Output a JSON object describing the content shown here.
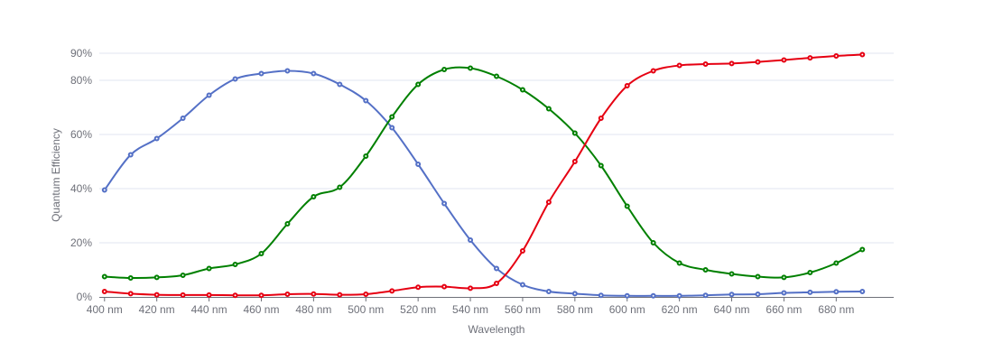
{
  "chart_data": {
    "type": "line",
    "title": "",
    "xlabel": "Wavelength",
    "ylabel": "Quantum Efficiency",
    "x_ticks": [
      "400 nm",
      "420 nm",
      "440 nm",
      "460 nm",
      "480 nm",
      "500 nm",
      "520 nm",
      "540 nm",
      "560 nm",
      "580 nm",
      "600 nm",
      "620 nm",
      "640 nm",
      "660 nm",
      "680 nm"
    ],
    "y_ticks": [
      {
        "value": 0,
        "label": "0%"
      },
      {
        "value": 20,
        "label": "20%"
      },
      {
        "value": 40,
        "label": "40%"
      },
      {
        "value": 60,
        "label": "60%"
      },
      {
        "value": 80,
        "label": "80%"
      },
      {
        "value": 90,
        "label": "90%"
      }
    ],
    "xlim": [
      398,
      702
    ],
    "ylim": [
      0,
      90
    ],
    "grid": true,
    "smooth": true,
    "x": [
      400,
      410,
      420,
      430,
      440,
      450,
      460,
      470,
      480,
      490,
      500,
      510,
      520,
      530,
      540,
      550,
      560,
      570,
      580,
      590,
      600,
      610,
      620,
      630,
      640,
      650,
      660,
      670,
      680,
      690
    ],
    "series": [
      {
        "color": "#5470c6",
        "values": [
          39.5,
          52.5,
          58.5,
          66,
          74.5,
          80.5,
          82.5,
          83.5,
          82.5,
          78.5,
          72.5,
          62.5,
          49,
          34.5,
          21,
          10.5,
          4.5,
          2,
          1.2,
          0.6,
          0.4,
          0.4,
          0.4,
          0.6,
          0.9,
          1,
          1.5,
          1.7,
          1.9,
          2
        ]
      },
      {
        "color": "#008000",
        "values": [
          7.5,
          7,
          7.2,
          8,
          10.5,
          12,
          16,
          27,
          37,
          40.5,
          52,
          66.5,
          78.5,
          84,
          84.5,
          81.5,
          76.5,
          69.5,
          60.5,
          48.5,
          33.5,
          20,
          12.5,
          10,
          8.5,
          7.5,
          7.2,
          9,
          12.5,
          17.5
        ]
      },
      {
        "color": "#e60012",
        "values": [
          2,
          1.2,
          0.8,
          0.7,
          0.7,
          0.6,
          0.6,
          1,
          1.1,
          0.8,
          1,
          2.2,
          3.6,
          3.8,
          3.2,
          5,
          17,
          35,
          50,
          66,
          78,
          83.5,
          85.5,
          86,
          86.2,
          86.8,
          87.5,
          88.3,
          89,
          89.5
        ]
      }
    ]
  }
}
